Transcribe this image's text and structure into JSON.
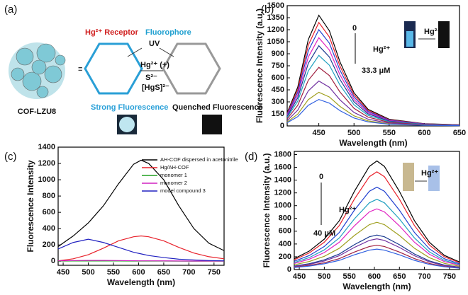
{
  "diagram": {
    "panel_label": "(a)",
    "receptor": "Hg²⁺ Receptor",
    "fluorophore": "Fluorophore",
    "uv": "UV",
    "hg_add": "Hg²⁺ (+)",
    "s2": "S²⁻",
    "hgs": "[HgS]²⁻",
    "cof_name": "COF-LZU8",
    "strong": "Strong Fluorescence",
    "quenched": "Quenched Fluorescence"
  },
  "chart_data": [
    {
      "type": "line",
      "panel_label": "(b)",
      "x_label": "Wavelength (nm)",
      "y_label": "Fluorescence Intensity (a.u.)",
      "x": [
        405,
        420,
        435,
        450,
        465,
        480,
        500,
        520,
        550,
        600,
        650
      ],
      "xlim": [
        405,
        650
      ],
      "ylim": [
        0,
        1500
      ],
      "xticks": [
        450,
        500,
        550,
        600,
        650
      ],
      "yticks": [
        0,
        150,
        300,
        450,
        600,
        750,
        900,
        1050,
        1200,
        1350,
        1500
      ],
      "annotations": [
        "0",
        "Hg²⁺",
        "33.3 μM",
        "Hg²⁺"
      ],
      "series": [
        {
          "color": "#000000",
          "values": [
            166,
            483,
            1076,
            1380,
            1187,
            800,
            414,
            207,
            83,
            28,
            14
          ]
        },
        {
          "color": "#e8202a",
          "values": [
            155,
            452,
            1006,
            1290,
            1109,
            748,
            387,
            194,
            77,
            26,
            13
          ]
        },
        {
          "color": "#2040d0",
          "values": [
            144,
            420,
            936,
            1200,
            1032,
            696,
            360,
            180,
            72,
            24,
            12
          ]
        },
        {
          "color": "#e020c0",
          "values": [
            132,
            385,
            858,
            1100,
            946,
            638,
            330,
            165,
            66,
            22,
            11
          ]
        },
        {
          "color": "#1a3a90",
          "values": [
            120,
            350,
            780,
            1000,
            860,
            580,
            300,
            150,
            60,
            20,
            10
          ]
        },
        {
          "color": "#20a0c0",
          "values": [
            106,
            308,
            686,
            880,
            757,
            510,
            264,
            132,
            53,
            18,
            9
          ]
        },
        {
          "color": "#a02040",
          "values": [
            88,
            256,
            569,
            730,
            628,
            423,
            219,
            110,
            44,
            15,
            7
          ]
        },
        {
          "color": "#7030a0",
          "values": [
            67,
            196,
            437,
            560,
            482,
            325,
            168,
            84,
            34,
            11,
            6
          ]
        },
        {
          "color": "#a0a020",
          "values": [
            50,
            147,
            328,
            420,
            361,
            244,
            126,
            63,
            25,
            8,
            4
          ]
        },
        {
          "color": "#3060e0",
          "values": [
            40,
            116,
            257,
            330,
            284,
            191,
            99,
            50,
            20,
            7,
            3
          ]
        }
      ]
    },
    {
      "type": "line",
      "panel_label": "(c)",
      "x_label": "Wavelength (nm)",
      "y_label": "Fluorescence Intensity",
      "x": [
        440,
        470,
        500,
        530,
        560,
        590,
        605,
        620,
        650,
        680,
        710,
        740,
        770
      ],
      "xlim": [
        440,
        770
      ],
      "ylim": [
        -50,
        1400
      ],
      "xticks": [
        450,
        500,
        550,
        600,
        650,
        700,
        750
      ],
      "yticks": [
        0,
        200,
        400,
        600,
        800,
        1000,
        1200,
        1400
      ],
      "series": [
        {
          "name": "AH-COF dispersed in acetonitrile",
          "color": "#000000",
          "values": [
            180,
            310,
            470,
            680,
            950,
            1190,
            1240,
            1200,
            1000,
            680,
            400,
            220,
            130
          ]
        },
        {
          "name": "Hg/AH-COF",
          "color": "#e8202a",
          "values": [
            5,
            30,
            80,
            160,
            250,
            300,
            310,
            300,
            250,
            170,
            100,
            55,
            30
          ]
        },
        {
          "name": "monomer 1",
          "color": "#20a020",
          "values": [
            2,
            3,
            3,
            3,
            3,
            2,
            2,
            2,
            2,
            1,
            1,
            1,
            1
          ]
        },
        {
          "name": "monomer 2",
          "color": "#d020c0",
          "values": [
            5,
            8,
            10,
            10,
            8,
            6,
            5,
            5,
            4,
            3,
            2,
            2,
            2
          ]
        },
        {
          "name": "model compound 3",
          "color": "#2020c0",
          "values": [
            150,
            230,
            270,
            230,
            170,
            110,
            90,
            70,
            45,
            25,
            15,
            8,
            5
          ]
        }
      ]
    },
    {
      "type": "line",
      "panel_label": "(d)",
      "x_label": "Wavelength (nm)",
      "y_label": "Fluorescence Intensity (a.u.)",
      "x": [
        440,
        470,
        500,
        530,
        560,
        590,
        605,
        620,
        650,
        680,
        710,
        740,
        770
      ],
      "xlim": [
        440,
        770
      ],
      "ylim": [
        0,
        1850
      ],
      "xticks": [
        450,
        500,
        550,
        600,
        650,
        700,
        750
      ],
      "yticks": [
        0,
        200,
        400,
        600,
        800,
        1000,
        1200,
        1400,
        1600,
        1800
      ],
      "annotations": [
        "0",
        "Hg²⁺",
        "40 μM",
        "Hg²⁺"
      ],
      "series": [
        {
          "color": "#000000",
          "values": [
            170,
            289,
            476,
            765,
            1224,
            1615,
            1700,
            1615,
            1224,
            765,
            425,
            221,
            119
          ]
        },
        {
          "color": "#e8202a",
          "values": [
            153,
            260,
            428,
            689,
            1102,
            1454,
            1530,
            1454,
            1102,
            689,
            383,
            199,
            107
          ]
        },
        {
          "color": "#2040d0",
          "values": [
            129,
            219,
            361,
            581,
            929,
            1226,
            1290,
            1226,
            929,
            581,
            323,
            168,
            90
          ]
        },
        {
          "color": "#20a0c0",
          "values": [
            110,
            187,
            308,
            495,
            792,
            1045,
            1100,
            1045,
            792,
            495,
            275,
            143,
            77
          ]
        },
        {
          "color": "#e020c0",
          "values": [
            95,
            162,
            266,
            428,
            684,
            903,
            950,
            903,
            684,
            428,
            238,
            124,
            67
          ]
        },
        {
          "color": "#a0a020",
          "values": [
            74,
            126,
            207,
            333,
            533,
            703,
            740,
            703,
            533,
            333,
            185,
            96,
            52
          ]
        },
        {
          "color": "#1a3a90",
          "values": [
            54,
            92,
            151,
            243,
            389,
            513,
            540,
            513,
            389,
            243,
            135,
            70,
            38
          ]
        },
        {
          "color": "#7030a0",
          "values": [
            48,
            82,
            134,
            216,
            346,
            456,
            480,
            456,
            346,
            216,
            120,
            62,
            34
          ]
        },
        {
          "color": "#a02040",
          "values": [
            38,
            65,
            106,
            171,
            274,
            361,
            380,
            361,
            274,
            171,
            95,
            49,
            27
          ]
        },
        {
          "color": "#3060e0",
          "values": [
            32,
            54,
            90,
            144,
            230,
            304,
            320,
            304,
            230,
            144,
            80,
            42,
            22
          ]
        }
      ]
    }
  ]
}
